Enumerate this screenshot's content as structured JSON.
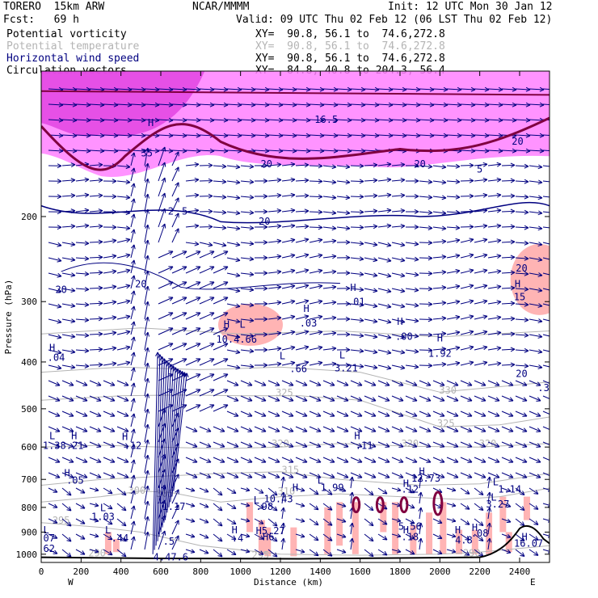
{
  "header": {
    "model": "TORERO  15km ARW",
    "center": "NCAR/MMMM",
    "init": "Init: 12 UTC Mon 30 Jan 12",
    "fcst": "Fcst:   69 h",
    "valid": "Valid: 09 UTC Thu 02 Feb 12 (06 LST Thu 02 Feb 12)"
  },
  "fields": [
    {
      "label": "Potential vorticity",
      "range": "XY=  90.8, 56.1 to  74.6,272.8",
      "color": "#000000"
    },
    {
      "label": "Potential temperature",
      "range": "XY=  90.8, 56.1 to  74.6,272.8",
      "color": "#b4b4b4"
    },
    {
      "label": "Horizontal wind speed",
      "range": "XY=  90.8, 56.1 to  74.6,272.8",
      "color": "#000080"
    },
    {
      "label": "Circulation vectors",
      "range": "XY=  84.8, 40.8 to 204.3, 56.4",
      "color": "#000000"
    }
  ],
  "colors": {
    "vectors": "#000080",
    "theta": "#b4b4b4",
    "pv_shade_high": "#e040e0",
    "pv_shade_mid": "#ff80ff",
    "salmon": "#ffb4b4",
    "pv_contour": "#800040",
    "terrain": "#000000"
  },
  "chart_data": {
    "type": "cross-section",
    "xlabel": "Distance (km)",
    "ylabel": "Pressure (hPa)",
    "xlim": [
      0,
      2550
    ],
    "ylim": [
      1040,
      100
    ],
    "y_scale": "log",
    "x_ticks": [
      0,
      200,
      400,
      600,
      800,
      1000,
      1200,
      1400,
      1600,
      1800,
      2000,
      2200,
      2400
    ],
    "x_tick_labels": [
      "0",
      "200",
      "400",
      "600",
      "800",
      "1000",
      "1200",
      "1400",
      "1600",
      "1800",
      "2000",
      "2200",
      "2400"
    ],
    "y_ticks": [
      200,
      300,
      400,
      500,
      600,
      700,
      800,
      900,
      1000
    ],
    "y_tick_labels": [
      "200",
      "300",
      "400",
      "500",
      "600",
      "700",
      "800",
      "900",
      "1000"
    ],
    "west_label": "W",
    "east_label": "E",
    "theta_contours": [
      {
        "value": "295",
        "x": 100,
        "p": 865
      },
      {
        "value": "300",
        "x": 480,
        "p": 750
      },
      {
        "value": "305",
        "x": 620,
        "p": 762
      },
      {
        "value": "310",
        "x": 1230,
        "p": 752
      },
      {
        "value": "315",
        "x": 1250,
        "p": 680
      },
      {
        "value": "320",
        "x": 1200,
        "p": 600
      },
      {
        "value": "320",
        "x": 1850,
        "p": 600
      },
      {
        "value": "320",
        "x": 2240,
        "p": 600
      },
      {
        "value": "325",
        "x": 1220,
        "p": 470
      },
      {
        "value": "325",
        "x": 2030,
        "p": 545
      },
      {
        "value": "330",
        "x": 2040,
        "p": 465
      },
      {
        "value": "290",
        "x": 280,
        "p": 1010
      },
      {
        "value": "295",
        "x": 1100,
        "p": 1020
      },
      {
        "value": "290",
        "x": 2160,
        "p": 1010
      }
    ],
    "extrema_labels": [
      {
        "text": "H",
        "x": 55,
        "p": 380,
        "color": "#000080"
      },
      {
        "text": ".04",
        "x": 75,
        "p": 398,
        "color": "#000080"
      },
      {
        "text": "L",
        "x": 55,
        "p": 578,
        "color": "#000080"
      },
      {
        "text": "H",
        "x": 165,
        "p": 578,
        "color": "#000080"
      },
      {
        "text": "1.38.21",
        "x": 110,
        "p": 605,
        "color": "#000080"
      },
      {
        "text": "H",
        "x": 420,
        "p": 580,
        "color": "#000080"
      },
      {
        "text": ".12",
        "x": 460,
        "p": 605,
        "color": "#000080"
      },
      {
        "text": "H",
        "x": 130,
        "p": 690,
        "color": "#000080"
      },
      {
        "text": ".05",
        "x": 170,
        "p": 715,
        "color": "#000080"
      },
      {
        "text": "L",
        "x": 1010,
        "p": 340,
        "color": "#000080"
      },
      {
        "text": "H",
        "x": 930,
        "p": 340,
        "color": "#000080"
      },
      {
        "text": "10.4.66",
        "x": 980,
        "p": 365,
        "color": "#000080"
      },
      {
        "text": "H",
        "x": 1330,
        "p": 315,
        "color": "#000080"
      },
      {
        "text": ".03",
        "x": 1340,
        "p": 338,
        "color": "#000080"
      },
      {
        "text": "H",
        "x": 1565,
        "p": 285,
        "color": "#000080"
      },
      {
        "text": ".01",
        "x": 1580,
        "p": 305,
        "color": "#000080"
      },
      {
        "text": "H",
        "x": 1800,
        "p": 335,
        "color": "#000080"
      },
      {
        "text": ".00",
        "x": 1820,
        "p": 360,
        "color": "#000080"
      },
      {
        "text": "H",
        "x": 2000,
        "p": 363,
        "color": "#000080"
      },
      {
        "text": "1.92",
        "x": 2000,
        "p": 390,
        "color": "#000080"
      },
      {
        "text": "L",
        "x": 1210,
        "p": 395,
        "color": "#000080"
      },
      {
        "text": ".66",
        "x": 1290,
        "p": 420,
        "color": "#000080"
      },
      {
        "text": "L",
        "x": 1510,
        "p": 393,
        "color": "#000080"
      },
      {
        "text": "3.21",
        "x": 1530,
        "p": 418,
        "color": "#000080"
      },
      {
        "text": "H",
        "x": 1585,
        "p": 578,
        "color": "#000080"
      },
      {
        "text": ".11",
        "x": 1620,
        "p": 605,
        "color": "#000080"
      },
      {
        "text": "H",
        "x": 1910,
        "p": 685,
        "color": "#000080"
      },
      {
        "text": "12.73",
        "x": 1930,
        "p": 708,
        "color": "#000080"
      },
      {
        "text": "L",
        "x": 1400,
        "p": 715,
        "color": "#000080"
      },
      {
        "text": "H",
        "x": 1275,
        "p": 740,
        "color": "#000080"
      },
      {
        "text": "1.99",
        "x": 1460,
        "p": 740,
        "color": "#000080"
      },
      {
        "text": "H",
        "x": 1830,
        "p": 725,
        "color": "#000080"
      },
      {
        "text": ".12",
        "x": 1850,
        "p": 745,
        "color": "#000080"
      },
      {
        "text": "10.43",
        "x": 1190,
        "p": 780,
        "color": "#000080"
      },
      {
        "text": "L",
        "x": 2280,
        "p": 720,
        "color": "#000080"
      },
      {
        "text": "1.14",
        "x": 2350,
        "p": 745,
        "color": "#000080"
      },
      {
        "text": "L",
        "x": 2270,
        "p": 775,
        "color": "#000080"
      },
      {
        "text": "3.27",
        "x": 2290,
        "p": 800,
        "color": "#000080"
      },
      {
        "text": "L",
        "x": 605,
        "p": 785,
        "color": "#000080"
      },
      {
        "text": "1.17",
        "x": 665,
        "p": 810,
        "color": "#000080"
      },
      {
        "text": "L",
        "x": 1080,
        "p": 785,
        "color": "#000080"
      },
      {
        "text": ".98",
        "x": 1120,
        "p": 810,
        "color": "#000080"
      },
      {
        "text": "L",
        "x": 310,
        "p": 815,
        "color": "#000080"
      },
      {
        "text": "1.03",
        "x": 310,
        "p": 850,
        "color": "#000080"
      },
      {
        "text": "L",
        "x": 335,
        "p": 905,
        "color": "#000080"
      },
      {
        "text": ".44",
        "x": 395,
        "p": 940,
        "color": "#000080"
      },
      {
        "text": "L",
        "x": 25,
        "p": 905,
        "color": "#000080"
      },
      {
        "text": ".07",
        "x": 25,
        "p": 940,
        "color": "#000080"
      },
      {
        "text": ".62",
        "x": 25,
        "p": 990,
        "color": "#000080"
      },
      {
        "text": ".5",
        "x": 640,
        "p": 955,
        "color": "#000080"
      },
      {
        "text": "H",
        "x": 970,
        "p": 905,
        "color": "#000080"
      },
      {
        "text": ".4",
        "x": 985,
        "p": 940,
        "color": "#000080"
      },
      {
        "text": "H5.27",
        "x": 1150,
        "p": 908,
        "color": "#000080"
      },
      {
        "text": "H6",
        "x": 1140,
        "p": 935,
        "color": "#000080"
      },
      {
        "text": "5.56",
        "x": 1850,
        "p": 890,
        "color": "#000080"
      },
      {
        "text": "H",
        "x": 1830,
        "p": 905,
        "color": "#000080"
      },
      {
        "text": ".18",
        "x": 1850,
        "p": 935,
        "color": "#000080"
      },
      {
        "text": "H",
        "x": 2090,
        "p": 905,
        "color": "#000080"
      },
      {
        "text": "4.8",
        "x": 2120,
        "p": 950,
        "color": "#000080"
      },
      {
        "text": "H",
        "x": 2175,
        "p": 895,
        "color": "#000080"
      },
      {
        "text": ".08",
        "x": 2200,
        "p": 920,
        "color": "#000080"
      },
      {
        "text": "H",
        "x": 2425,
        "p": 935,
        "color": "#000080"
      },
      {
        "text": "16.07",
        "x": 2445,
        "p": 965,
        "color": "#000080"
      },
      {
        "text": "4.47.6",
        "x": 650,
        "p": 1030,
        "color": "#000080"
      },
      {
        "text": "H",
        "x": 550,
        "p": 130,
        "color": "#000080"
      },
      {
        "text": "35",
        "x": 530,
        "p": 150,
        "color": "#000080"
      },
      {
        "text": "16.5",
        "x": 1430,
        "p": 128,
        "color": "#000080"
      },
      {
        "text": "20",
        "x": 1130,
        "p": 158,
        "color": "#000080"
      },
      {
        "text": "20",
        "x": 1900,
        "p": 158,
        "color": "#000080"
      },
      {
        "text": "5",
        "x": 2200,
        "p": 162,
        "color": "#000080"
      },
      {
        "text": "20",
        "x": 2390,
        "p": 142,
        "color": "#000080"
      },
      {
        "text": "2",
        "x": 650,
        "p": 198,
        "color": "#000080"
      },
      {
        "text": "5",
        "x": 720,
        "p": 198,
        "color": "#000080"
      },
      {
        "text": "20",
        "x": 1120,
        "p": 208,
        "color": "#000080"
      },
      {
        "text": "20",
        "x": 100,
        "p": 288,
        "color": "#000080"
      },
      {
        "text": "20",
        "x": 500,
        "p": 280,
        "color": "#000080"
      },
      {
        "text": "20",
        "x": 2410,
        "p": 260,
        "color": "#000080"
      },
      {
        "text": "H",
        "x": 2390,
        "p": 280,
        "color": "#000080"
      },
      {
        "text": "15",
        "x": 2400,
        "p": 298,
        "color": "#000080"
      },
      {
        "text": ".3",
        "x": 2520,
        "p": 460,
        "color": "#000080"
      },
      {
        "text": "20",
        "x": 2410,
        "p": 430,
        "color": "#000080"
      }
    ]
  }
}
